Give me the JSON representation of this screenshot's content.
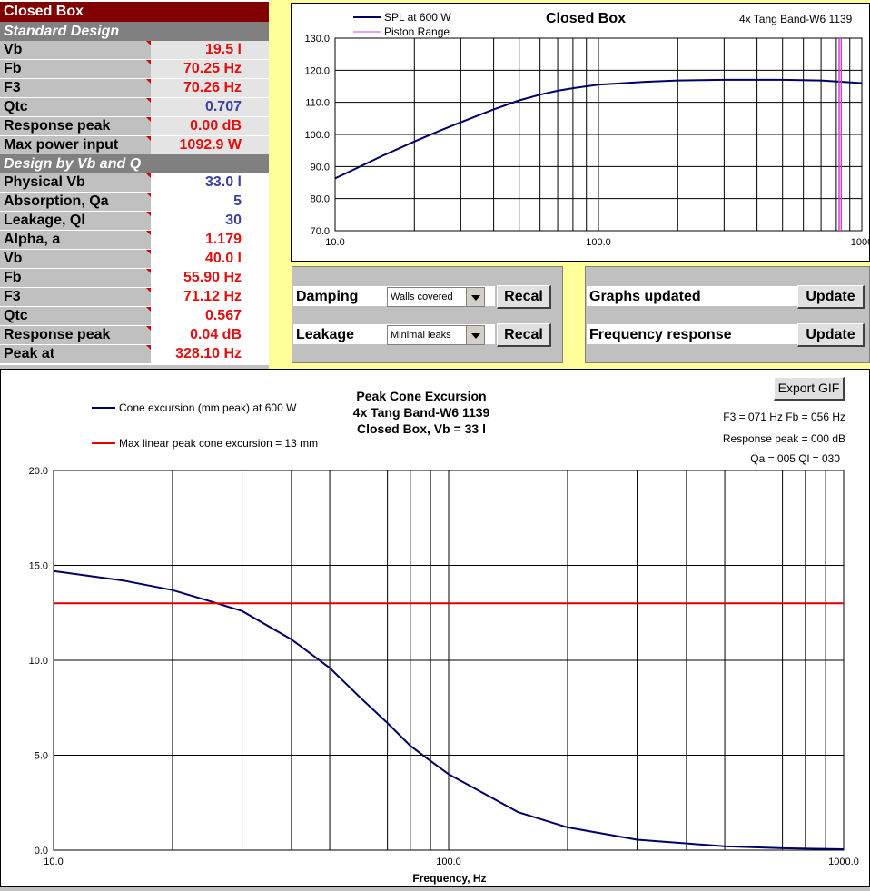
{
  "sheet": {
    "title": "Closed Box",
    "standard_header": "Standard Design",
    "design_header": "Design by Vb and Q",
    "standard_rows": [
      {
        "label": "Vb",
        "value": "19.5  l"
      },
      {
        "label": "Fb",
        "value": "70.25  Hz"
      },
      {
        "label": "F3",
        "value": "70.26  Hz"
      },
      {
        "label": "Qtc",
        "value": "0.707"
      },
      {
        "label": "Response peak",
        "value": "0.00  dB"
      },
      {
        "label": "Max power input",
        "value": "1092.9  W"
      }
    ],
    "design_rows": [
      {
        "label": "Physical Vb",
        "value": "33.0  l"
      },
      {
        "label": "Absorption, Qa",
        "value": "5"
      },
      {
        "label": "Leakage, Ql",
        "value": "30"
      },
      {
        "label": "Alpha, a",
        "value": "1.179"
      },
      {
        "label": "Vb",
        "value": "40.0  l"
      },
      {
        "label": "Fb",
        "value": "55.90  Hz"
      },
      {
        "label": "F3",
        "value": "71.12  Hz"
      },
      {
        "label": "Qtc",
        "value": "0.567"
      },
      {
        "label": "Response peak",
        "value": "0.04  dB"
      },
      {
        "label": "Peak at",
        "value": "328.10  Hz"
      }
    ]
  },
  "controls": {
    "damping_label": "Damping",
    "damping_value": "Walls covered",
    "leakage_label": "Leakage",
    "leakage_value": "Minimal leaks",
    "recal_label": "Recal",
    "graphs_label": "Graphs updated",
    "freq_label": "Frequency response",
    "update_label": "Update"
  },
  "export_label": "Export GIF",
  "colors": {
    "dark_red": "#800000",
    "value_red": "#e01010",
    "value_blue": "#3b3fa0",
    "navy_line": "#000066",
    "red_line": "#e00000",
    "piston": "#cc44cc",
    "yellow": "#ffff99"
  },
  "chart_data": [
    {
      "type": "line",
      "title": "Closed Box",
      "subtitle": "4x Tang Band-W6 1139",
      "x_scale": "log",
      "xlim": [
        10,
        1000
      ],
      "ylim": [
        70,
        130
      ],
      "x_ticks": [
        "10.0",
        "100.0",
        "1000"
      ],
      "y_ticks": [
        "70.0",
        "80.0",
        "90.0",
        "100.0",
        "110.0",
        "120.0",
        "130.0"
      ],
      "grid": true,
      "legend": "top-left",
      "series": [
        {
          "name": "SPL at 600 W",
          "x": [
            10,
            12,
            15,
            20,
            25,
            30,
            40,
            50,
            60,
            70,
            80,
            100,
            150,
            200,
            300,
            500,
            700,
            1000
          ],
          "y": [
            86.3,
            89.4,
            93.2,
            97.8,
            101.2,
            103.8,
            107.8,
            110.6,
            112.4,
            113.6,
            114.4,
            115.5,
            116.4,
            116.8,
            117.0,
            117.0,
            116.8,
            116.0
          ]
        },
        {
          "name": "Piston Range",
          "x": [
            820,
            835
          ],
          "y": [
            70,
            130
          ]
        }
      ]
    },
    {
      "type": "line",
      "title": "Peak Cone Excursion",
      "subtitle_lines": [
        "4x Tang Band-W6 1139",
        "Closed Box, Vb = 33 l"
      ],
      "annotations": [
        "F3 = 071 Hz  Fb = 056 Hz",
        "Response peak = 000 dB",
        "Qa = 005   Ql = 030"
      ],
      "xlabel": "Frequency,  Hz",
      "x_scale": "log",
      "xlim": [
        10,
        1000
      ],
      "ylim": [
        0,
        20
      ],
      "x_ticks": [
        "10.0",
        "100.0",
        "1000.0"
      ],
      "y_ticks": [
        "0.0",
        "5.0",
        "10.0",
        "15.0",
        "20.0"
      ],
      "grid": true,
      "legend": "top-left",
      "series": [
        {
          "name": "Cone excursion (mm peak) at 600 W",
          "x": [
            10,
            15,
            20,
            25,
            30,
            40,
            50,
            60,
            70,
            80,
            90,
            100,
            150,
            200,
            300,
            500,
            700,
            1000
          ],
          "y": [
            14.7,
            14.2,
            13.7,
            13.1,
            12.6,
            11.1,
            9.6,
            8.0,
            6.7,
            5.5,
            4.7,
            4.0,
            2.0,
            1.2,
            0.55,
            0.2,
            0.1,
            0.05
          ]
        },
        {
          "name": "Max linear peak cone excursion = 13 mm",
          "x": [
            10,
            1000
          ],
          "y": [
            13,
            13
          ]
        }
      ]
    }
  ]
}
